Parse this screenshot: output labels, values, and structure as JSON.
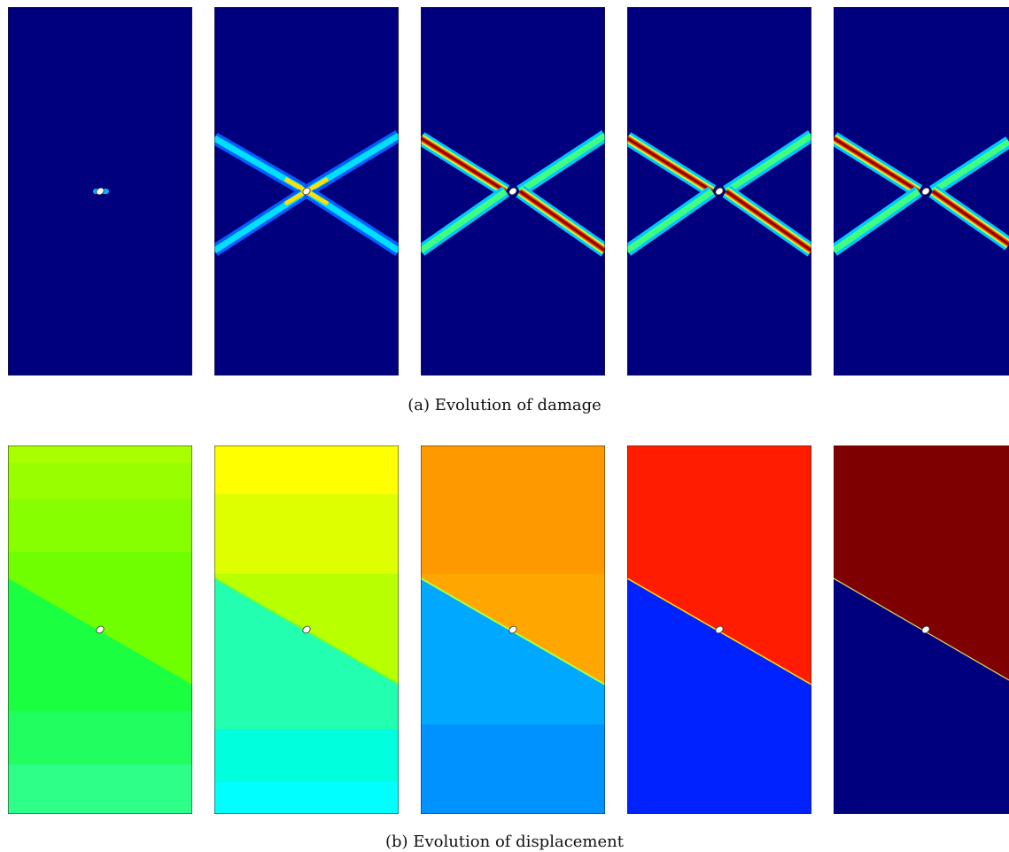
{
  "figure": {
    "subfigures": [
      {
        "id": "a",
        "caption": "(a) Evolution of damage",
        "panel_count": 5,
        "colormap": "jet",
        "panels": [
          {
            "stage": 1,
            "background": "#00007f",
            "band_level": "low"
          },
          {
            "stage": 2,
            "background": "#00007f",
            "band_level": "medium"
          },
          {
            "stage": 3,
            "background": "#00007f",
            "band_level": "high"
          },
          {
            "stage": 4,
            "background": "#00007f",
            "band_level": "high"
          },
          {
            "stage": 5,
            "background": "#00007f",
            "band_level": "high"
          }
        ]
      },
      {
        "id": "b",
        "caption": "(b) Evolution of displacement",
        "panel_count": 5,
        "colormap": "jet",
        "panels": [
          {
            "stage": 1,
            "top_color": "#99ff00",
            "bottom_color": "#2eff88"
          },
          {
            "stage": 2,
            "top_color": "#ffff00",
            "bottom_color": "#00ffe0"
          },
          {
            "stage": 3,
            "top_color": "#ff9900",
            "bottom_color": "#00a8ff"
          },
          {
            "stage": 4,
            "top_color": "#ff1c00",
            "bottom_color": "#0022ff"
          },
          {
            "stage": 5,
            "top_color": "#7f0000",
            "bottom_color": "#00007f"
          }
        ]
      }
    ]
  }
}
